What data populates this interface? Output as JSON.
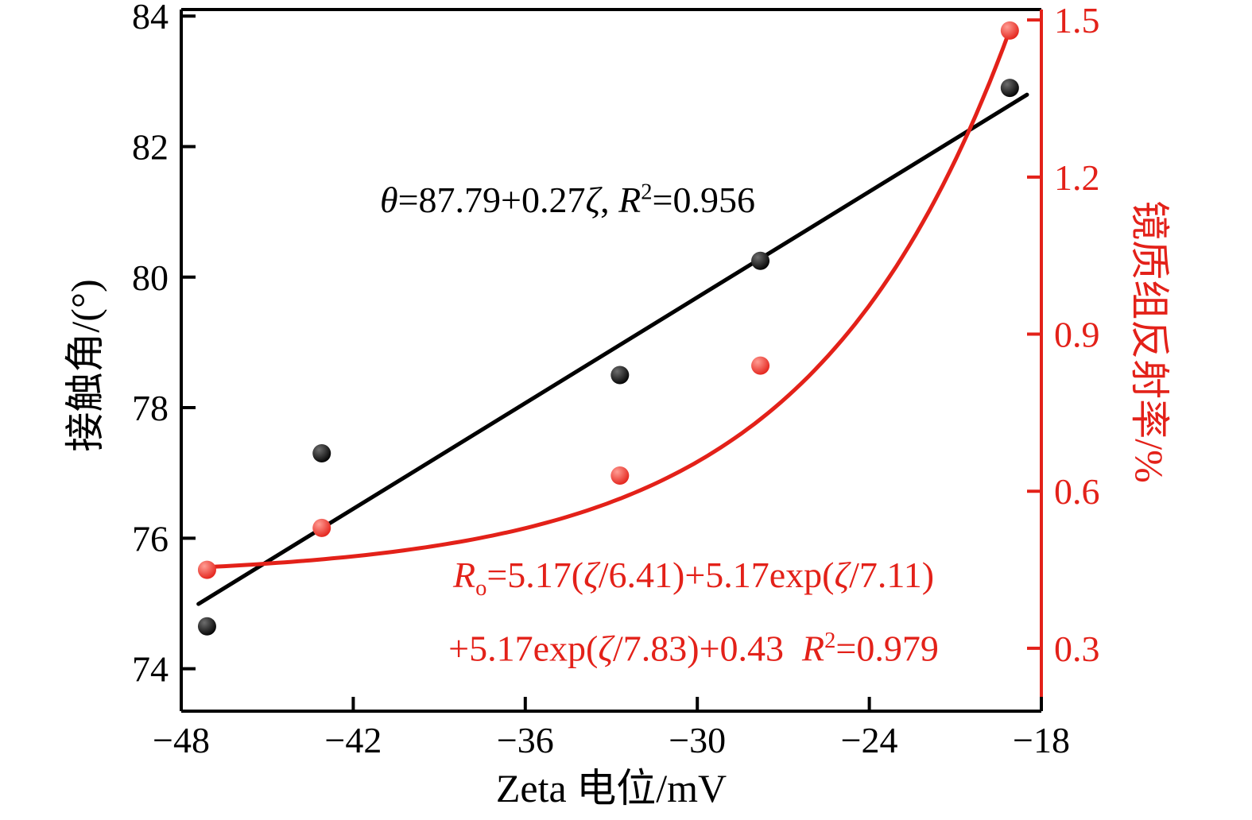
{
  "colors": {
    "black": "#000000",
    "red": "#e32119",
    "background": "#ffffff"
  },
  "chart_data": {
    "type": "scatter",
    "title": "",
    "xlabel": "Zeta 电位/mV",
    "ylabel_left": "接触角/(°)",
    "ylabel_right": "镜质组反射率/%",
    "xlim": [
      -48,
      -18
    ],
    "ylim_left": [
      73.35,
      84.1
    ],
    "ylim_right": [
      0.18,
      1.52
    ],
    "grid": false,
    "legend": "none",
    "x_ticks": {
      "values": [
        -48,
        -42,
        -36,
        -30,
        -24,
        -18
      ],
      "labels": [
        "−48",
        "−42",
        "−36",
        "−30",
        "−24",
        "−18"
      ]
    },
    "y_ticks_left": {
      "values": [
        84,
        82,
        80,
        78,
        76,
        74
      ],
      "labels": [
        "84",
        "82",
        "80",
        "78",
        "76",
        "74"
      ]
    },
    "y_ticks_right": {
      "values": [
        1.5,
        1.2,
        0.9,
        0.6,
        0.3
      ],
      "labels": [
        "1.5",
        "1.2",
        "0.9",
        "0.6",
        "0.3"
      ]
    },
    "series": [
      {
        "name": "contact-angle",
        "axis": "left",
        "color": "#000000",
        "points": [
          [
            -47.1,
            74.65
          ],
          [
            -43.1,
            77.3
          ],
          [
            -32.7,
            78.5
          ],
          [
            -27.8,
            80.25
          ],
          [
            -19.1,
            82.9
          ]
        ]
      },
      {
        "name": "vitrinite-reflectance",
        "axis": "right",
        "color": "#e32119",
        "points": [
          [
            -47.1,
            0.45
          ],
          [
            -43.1,
            0.53
          ],
          [
            -32.7,
            0.63
          ],
          [
            -27.8,
            0.84
          ],
          [
            -19.1,
            1.48
          ]
        ]
      }
    ],
    "fit_line_black": {
      "slope": 0.27,
      "intercept": 87.79,
      "x_range": [
        -47.4,
        -18.5
      ],
      "r_squared": 0.956,
      "color": "#000000"
    },
    "fit_curve_red": {
      "model": "a + b*exp(x/c)",
      "a": 0.436,
      "b": 16,
      "c": 7,
      "x_range": [
        -47.2,
        -19.1
      ],
      "r_squared": 0.979,
      "color": "#e32119"
    }
  },
  "annotations": {
    "black_equation": {
      "segments": [
        {
          "text": "θ",
          "style": "italic"
        },
        {
          "text": "=87.79+0.27",
          "style": "normal"
        },
        {
          "text": "ζ",
          "style": "italic"
        },
        {
          "text": ", ",
          "style": "normal"
        },
        {
          "text": "R",
          "style": "italic"
        },
        {
          "text": "2",
          "style": "sup"
        },
        {
          "text": "=0.956",
          "style": "normal"
        }
      ]
    },
    "red_equation_line1": {
      "segments": [
        {
          "text": "R",
          "style": "italic"
        },
        {
          "text": "o",
          "style": "sub"
        },
        {
          "text": "=5.17(",
          "style": "normal"
        },
        {
          "text": "ζ",
          "style": "italic"
        },
        {
          "text": "/6.41)+5.17exp(",
          "style": "normal"
        },
        {
          "text": "ζ",
          "style": "italic"
        },
        {
          "text": "/7.11)",
          "style": "normal"
        }
      ]
    },
    "red_equation_line2": {
      "segments": [
        {
          "text": "+5.17exp(",
          "style": "normal"
        },
        {
          "text": "ζ",
          "style": "italic"
        },
        {
          "text": "/7.83)+0.43  ",
          "style": "normal"
        },
        {
          "text": "R",
          "style": "italic"
        },
        {
          "text": "2",
          "style": "sup"
        },
        {
          "text": "=0.979",
          "style": "normal"
        }
      ]
    }
  }
}
